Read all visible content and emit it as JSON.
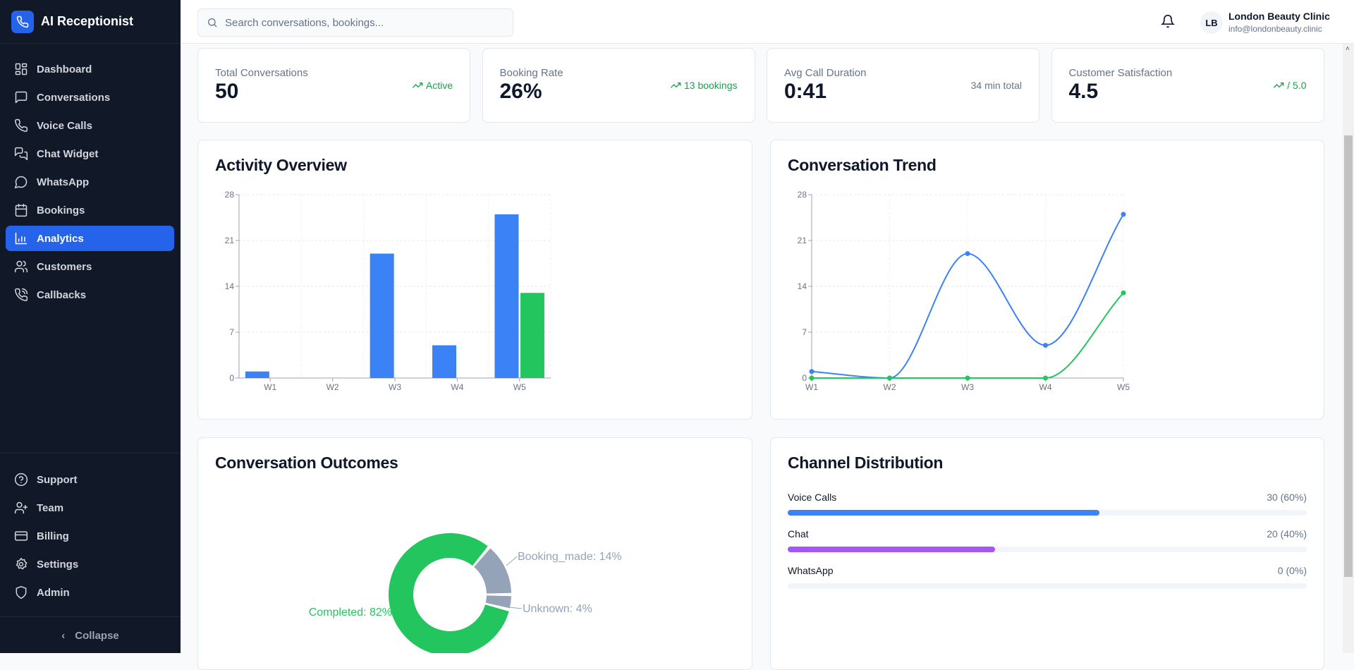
{
  "app": {
    "title": "AI Receptionist"
  },
  "sidebar": {
    "items": [
      {
        "label": "Dashboard",
        "icon": "dashboard-icon"
      },
      {
        "label": "Conversations",
        "icon": "message-square-icon"
      },
      {
        "label": "Voice Calls",
        "icon": "phone-icon"
      },
      {
        "label": "Chat Widget",
        "icon": "messages-icon"
      },
      {
        "label": "WhatsApp",
        "icon": "message-circle-icon"
      },
      {
        "label": "Bookings",
        "icon": "calendar-icon"
      },
      {
        "label": "Analytics",
        "icon": "bar-chart-icon",
        "active": true
      },
      {
        "label": "Customers",
        "icon": "users-icon"
      },
      {
        "label": "Callbacks",
        "icon": "phone-callback-icon"
      }
    ],
    "bottom_items": [
      {
        "label": "Support",
        "icon": "help-circle-icon"
      },
      {
        "label": "Team",
        "icon": "user-plus-icon"
      },
      {
        "label": "Billing",
        "icon": "credit-card-icon"
      },
      {
        "label": "Settings",
        "icon": "gear-icon"
      },
      {
        "label": "Admin",
        "icon": "shield-icon"
      }
    ],
    "collapse_label": "Collapse"
  },
  "header": {
    "search_placeholder": "Search conversations, bookings...",
    "user_initials": "LB",
    "user_name": "London Beauty Clinic",
    "user_email": "info@londonbeauty.clinic"
  },
  "stats": [
    {
      "label": "Total Conversations",
      "value": "50",
      "side": "Active",
      "trend": true
    },
    {
      "label": "Booking Rate",
      "value": "26%",
      "side": "13 bookings",
      "trend": true
    },
    {
      "label": "Avg Call Duration",
      "value": "0:41",
      "side": "34 min total",
      "trend": false
    },
    {
      "label": "Customer Satisfaction",
      "value": "4.5",
      "side": "/ 5.0",
      "trend": true
    }
  ],
  "colors": {
    "accent": "#2563eb",
    "blue": "#3b82f6",
    "green": "#22c55e",
    "gray": "#94a3b8",
    "purple": "#a855f7",
    "trend_green": "#16a34a"
  },
  "chart_data": [
    {
      "type": "bar",
      "title": "Activity Overview",
      "categories": [
        "W1",
        "W2",
        "W3",
        "W4",
        "W5"
      ],
      "series": [
        {
          "values": [
            1,
            0,
            19,
            5,
            25
          ],
          "color": "#3b82f6"
        },
        {
          "values": [
            0,
            0,
            0,
            0,
            13
          ],
          "color": "#22c55e"
        }
      ],
      "ylim": [
        0,
        28
      ],
      "yticks": [
        0,
        7,
        14,
        21,
        28
      ],
      "grid": true
    },
    {
      "type": "line",
      "title": "Conversation Trend",
      "categories": [
        "W1",
        "W2",
        "W3",
        "W4",
        "W5"
      ],
      "series": [
        {
          "values": [
            1,
            0,
            19,
            5,
            25
          ],
          "color": "#3b82f6"
        },
        {
          "values": [
            0,
            0,
            0,
            0,
            13
          ],
          "color": "#22c55e"
        }
      ],
      "ylim": [
        0,
        28
      ],
      "yticks": [
        0,
        7,
        14,
        21,
        28
      ],
      "grid": true
    },
    {
      "type": "pie",
      "title": "Conversation Outcomes",
      "donut": true,
      "slices": [
        {
          "label": "Booking_made: 14%",
          "value": 14,
          "color": "#94a3b8"
        },
        {
          "label": "Completed: 82%",
          "value": 82,
          "color": "#22c55e"
        },
        {
          "label": "Unknown: 4%",
          "value": 4,
          "color": "#94a3b8"
        }
      ]
    }
  ],
  "channels": {
    "title": "Channel Distribution",
    "items": [
      {
        "label": "Voice Calls",
        "value": "30 (60%)",
        "percent": 60,
        "color": "#3b82f6"
      },
      {
        "label": "Chat",
        "value": "20 (40%)",
        "percent": 40,
        "color": "#a855f7"
      },
      {
        "label": "WhatsApp",
        "value": "0 (0%)",
        "percent": 0,
        "color": "#22c55e"
      }
    ]
  }
}
